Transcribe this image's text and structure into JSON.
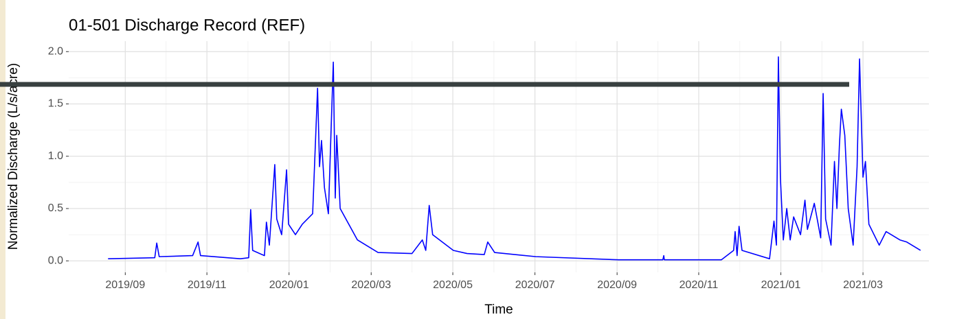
{
  "chart_data": {
    "type": "line",
    "title": "01-501 Discharge Record (REF)",
    "x_label": "Time",
    "y_label": "Normalized Discharge (L/s/acre)",
    "grid": true,
    "xlim": [
      2019.552,
      2021.301
    ],
    "xticks": [
      {
        "value": 2019.667,
        "label": "2019/09"
      },
      {
        "value": 2019.833,
        "label": "2019/11"
      },
      {
        "value": 2020.0,
        "label": "2020/01"
      },
      {
        "value": 2020.167,
        "label": "2020/03"
      },
      {
        "value": 2020.333,
        "label": "2020/05"
      },
      {
        "value": 2020.5,
        "label": "2020/07"
      },
      {
        "value": 2020.667,
        "label": "2020/09"
      },
      {
        "value": 2020.833,
        "label": "2020/11"
      },
      {
        "value": 2021.0,
        "label": "2021/01"
      },
      {
        "value": 2021.167,
        "label": "2021/03"
      }
    ],
    "ylim": [
      -0.11,
      2.1
    ],
    "yticks": [
      {
        "value": 0,
        "label": "0.0"
      },
      0.5,
      {
        "value": 1,
        "label": "1.0"
      },
      1.5,
      {
        "value": 2,
        "label": "2.0"
      }
    ],
    "x": [
      2019.632,
      2019.727,
      2019.731,
      2019.736,
      2019.804,
      2019.815,
      2019.82,
      2019.901,
      2019.918,
      2019.922,
      2019.926,
      2019.95,
      2019.954,
      2019.96,
      2019.971,
      2019.975,
      2019.985,
      2019.995,
      2019.999,
      2020.013,
      2020.027,
      2020.048,
      2020.058,
      2020.062,
      2020.066,
      2020.072,
      2020.08,
      2020.09,
      2020.094,
      2020.097,
      2020.104,
      2020.139,
      2020.181,
      2020.25,
      2020.271,
      2020.278,
      2020.285,
      2020.292,
      2020.334,
      2020.362,
      2020.397,
      2020.404,
      2020.418,
      2020.502,
      2020.67,
      2020.76,
      2020.762,
      2020.763,
      2020.879,
      2020.904,
      2020.907,
      2020.911,
      2020.915,
      2020.921,
      2020.977,
      2020.986,
      2020.991,
      2020.995,
      2020.999,
      2021.005,
      2021.012,
      2021.019,
      2021.026,
      2021.04,
      2021.049,
      2021.054,
      2021.068,
      2021.081,
      2021.086,
      2021.091,
      2021.102,
      2021.109,
      2021.114,
      2021.119,
      2021.123,
      2021.13,
      2021.137,
      2021.147,
      2021.155,
      2021.16,
      2021.167,
      2021.172,
      2021.179,
      2021.2,
      2021.214,
      2021.242,
      2021.256,
      2021.284
    ],
    "series": [
      {
        "name": "discharge",
        "color": "#0000ff",
        "values": [
          0.02,
          0.03,
          0.17,
          0.04,
          0.05,
          0.18,
          0.05,
          0.02,
          0.03,
          0.49,
          0.1,
          0.05,
          0.37,
          0.15,
          0.92,
          0.4,
          0.25,
          0.87,
          0.35,
          0.25,
          0.35,
          0.45,
          1.65,
          0.9,
          1.15,
          0.7,
          0.45,
          1.9,
          0.6,
          1.2,
          0.5,
          0.2,
          0.08,
          0.07,
          0.2,
          0.1,
          0.53,
          0.25,
          0.1,
          0.07,
          0.06,
          0.18,
          0.08,
          0.04,
          0.01,
          0.01,
          0.05,
          0.01,
          0.01,
          0.1,
          0.28,
          0.05,
          0.33,
          0.1,
          0.02,
          0.38,
          0.15,
          1.95,
          0.8,
          0.2,
          0.5,
          0.2,
          0.42,
          0.25,
          0.58,
          0.3,
          0.55,
          0.22,
          1.6,
          0.4,
          0.15,
          0.95,
          0.5,
          1.1,
          1.45,
          1.2,
          0.5,
          0.15,
          0.9,
          1.93,
          0.8,
          0.95,
          0.35,
          0.15,
          0.28,
          0.2,
          0.18,
          0.1
        ]
      }
    ]
  }
}
